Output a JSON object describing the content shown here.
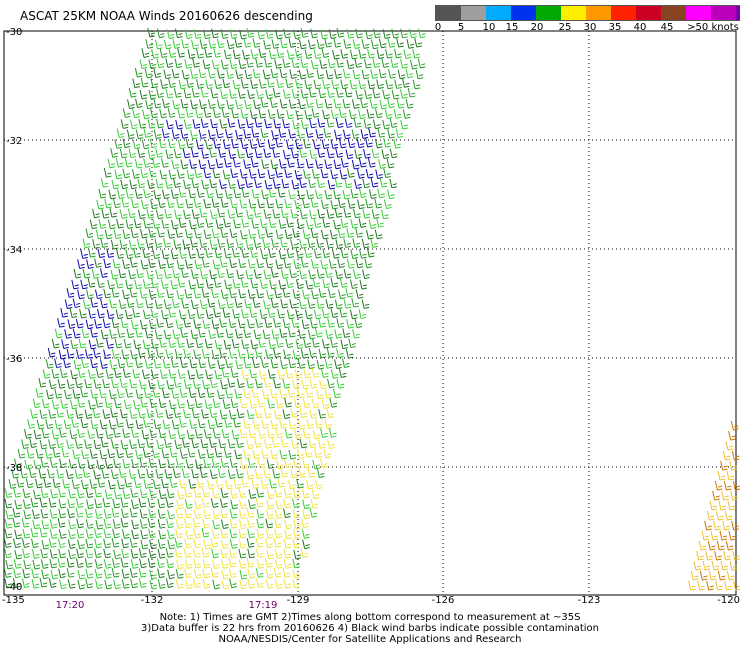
{
  "title": "ASCAT 25KM NOAA Winds 20160626 descending",
  "colorbar": {
    "colors": [
      "#555555",
      "#9e9e9e",
      "#00aaff",
      "#0033ee",
      "#00aa00",
      "#ffee00",
      "#ff9900",
      "#ff2200",
      "#cc0022",
      "#884422",
      "#ff00ff",
      "#bb00bb",
      "#7700aa"
    ],
    "labels": [
      "0",
      "5",
      "10",
      "15",
      "20",
      "25",
      "30",
      "35",
      "40",
      "45",
      ">50 knots"
    ]
  },
  "map": {
    "lat_labels": [
      "-30",
      "-32",
      "-34",
      "-36",
      "-38",
      "-40"
    ],
    "lon_labels": [
      "-135",
      "-132",
      "-129",
      "-126",
      "-123",
      "-120"
    ],
    "time_labels": [
      "17:20",
      "17:19"
    ],
    "lat_range": [
      -40,
      -30
    ],
    "lon_range": [
      -135,
      -120
    ]
  },
  "notes": {
    "line1": "Note: 1) Times are GMT 2)Times along bottom correspond to measurement at ~35S",
    "line2": "3)Data buffer is 22 hrs from 20160626 4) Black wind barbs indicate possible contamination",
    "line3": "NOAA/NESDIS/Center for Satellite Applications and Research"
  }
}
